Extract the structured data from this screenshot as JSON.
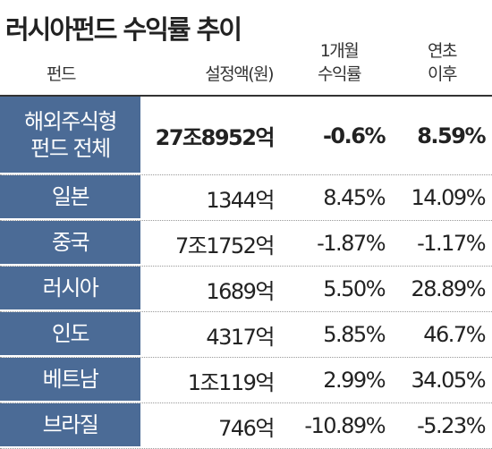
{
  "header": {
    "title": "러시아펀드 수익률 추이",
    "columns": [
      "펀드",
      "설정액(원)",
      "1개월\n수익률",
      "연초\n이후"
    ]
  },
  "table": {
    "rows": [
      [
        "해외주식형\n펀드 전체",
        "27조8952억",
        "-0.6%",
        "8.59%"
      ],
      [
        "일본",
        "1344억",
        "8.45%",
        "14.09%"
      ],
      [
        "중국",
        "7조1752억",
        "-1.87%",
        "-1.17%"
      ],
      [
        "러시아",
        "1689억",
        "5.50%",
        "28.89%"
      ],
      [
        "인도",
        "4317억",
        "5.85%",
        "46.7%"
      ],
      [
        "베트남",
        "1조119억",
        "2.99%",
        "34.05%"
      ],
      [
        "브라질",
        "746억",
        "-10.89%",
        "-5.23%"
      ]
    ]
  }
}
